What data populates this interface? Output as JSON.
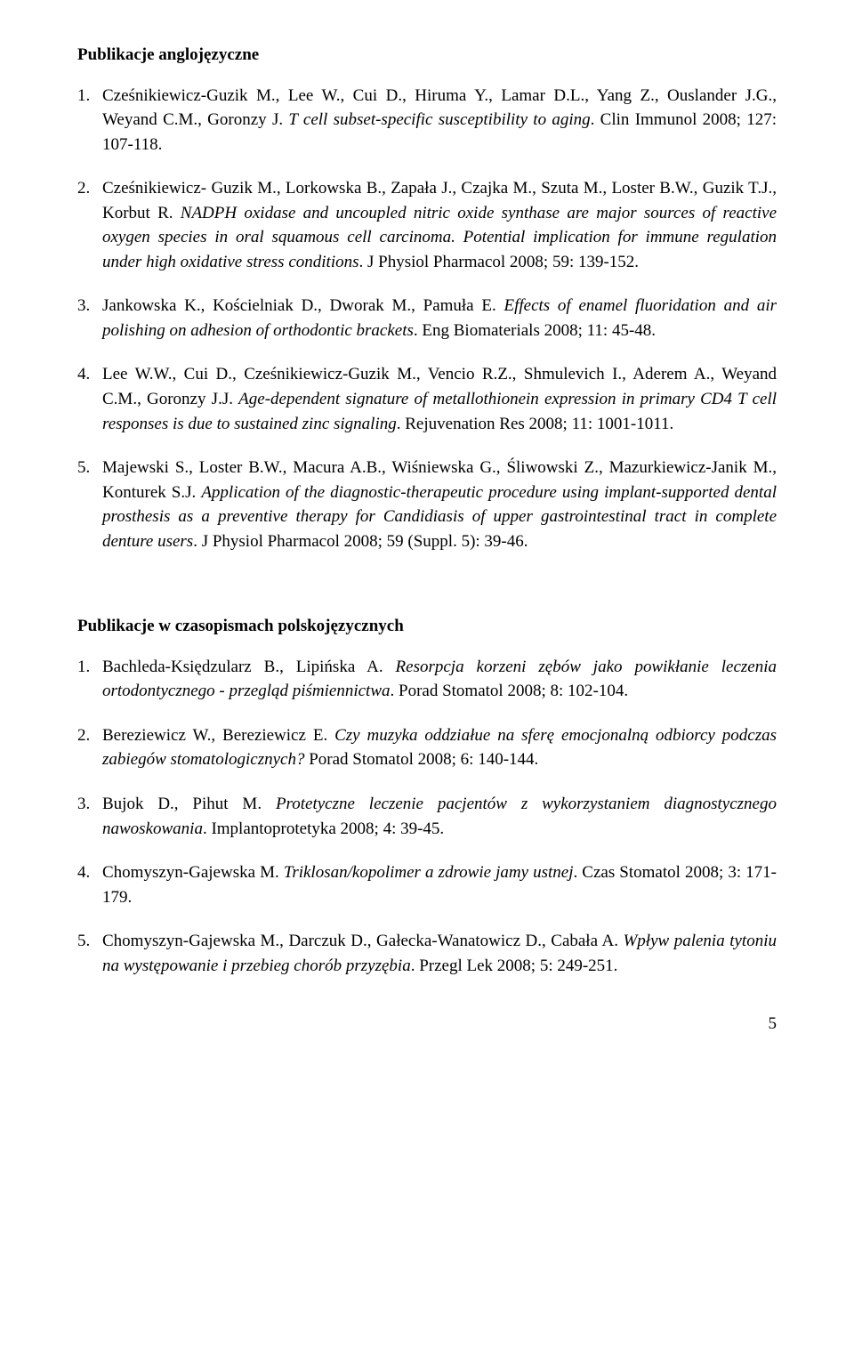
{
  "section_a": {
    "title": "Publikacje anglojęzyczne",
    "entries": [
      {
        "num": "1.",
        "authors_pre": "Cześnikiewicz-Guzik M., Lee W., Cui D., Hiruma Y., Lamar D.L., Yang Z., Ouslander J.G., Weyand C.M., Goronzy J. ",
        "title_italic": "T cell subset-specific susceptibility to aging",
        "tail": ". Clin Immunol 2008; 127: 107-118."
      },
      {
        "num": "2.",
        "authors_pre": "Cześnikiewicz- Guzik M., Lorkowska B., Zapała J., Czajka M., Szuta M., Loster B.W., Guzik T.J., Korbut R. ",
        "title_italic": "NADPH oxidase and uncoupled nitric oxide synthase are major sources of reactive oxygen species in oral squamous cell carcinoma. Potential implication for immune regulation under high oxidative stress conditions",
        "tail": ". J Physiol Pharmacol 2008; 59: 139-152."
      },
      {
        "num": "3.",
        "authors_pre": "Jankowska K., Kościelniak D., Dworak M., Pamuła E. ",
        "title_italic": "Effects of enamel fluoridation and air polishing on adhesion of orthodontic brackets",
        "tail": ". Eng Biomaterials 2008; 11: 45-48."
      },
      {
        "num": "4.",
        "authors_pre": "Lee W.W., Cui D., Cześnikiewicz-Guzik M., Vencio R.Z., Shmulevich I., Aderem A., Weyand C.M., Goronzy J.J. ",
        "title_italic": "Age-dependent signature of metallothionein expression in primary CD4 T cell responses is due to sustained zinc signaling",
        "tail": ". Rejuvenation Res 2008; 11: 1001-1011."
      },
      {
        "num": "5.",
        "authors_pre": "Majewski S., Loster B.W., Macura A.B., Wiśniewska G., Śliwowski Z., Mazurkiewicz-Janik M., Konturek S.J. ",
        "title_italic": "Application of the diagnostic-therapeutic procedure using implant-supported dental prosthesis as a preventive therapy for Candidiasis of upper gastrointestinal tract in complete denture users",
        "tail": ". J Physiol Pharmacol 2008; 59 (Suppl. 5): 39-46."
      }
    ]
  },
  "section_b": {
    "title": "Publikacje w czasopismach polskojęzycznych",
    "entries": [
      {
        "num": "1.",
        "authors_pre": "Bachleda-Księdzularz B., Lipińska A. ",
        "title_italic": "Resorpcja korzeni zębów jako powikłanie leczenia ortodontycznego - przegląd piśmiennictwa",
        "tail": ". Porad Stomatol 2008; 8: 102-104."
      },
      {
        "num": "2.",
        "authors_pre": "Bereziewicz W., Bereziewicz E. ",
        "title_italic": "Czy muzyka oddziałue na sferę emocjonalną odbiorcy podczas zabiegów stomatologicznych?",
        "tail": " Porad Stomatol 2008; 6: 140-144."
      },
      {
        "num": "3.",
        "authors_pre": "Bujok D., Pihut M. ",
        "title_italic": "Protetyczne leczenie pacjentów z wykorzystaniem diagnostycznego nawoskowania",
        "tail": ". Implantoprotetyka 2008; 4: 39-45."
      },
      {
        "num": "4.",
        "authors_pre": "Chomyszyn-Gajewska M. ",
        "title_italic": "Triklosan/kopolimer a zdrowie jamy ustnej",
        "tail": ". Czas Stomatol 2008; 3: 171-179."
      },
      {
        "num": "5.",
        "authors_pre": "Chomyszyn-Gajewska M., Darczuk D., Gałecka-Wanatowicz D., Cabała A. ",
        "title_italic": "Wpływ palenia tytoniu na występowanie i przebieg chorób przyzębia",
        "tail": ". Przegl Lek 2008; 5: 249-251."
      }
    ]
  },
  "page_number": "5"
}
